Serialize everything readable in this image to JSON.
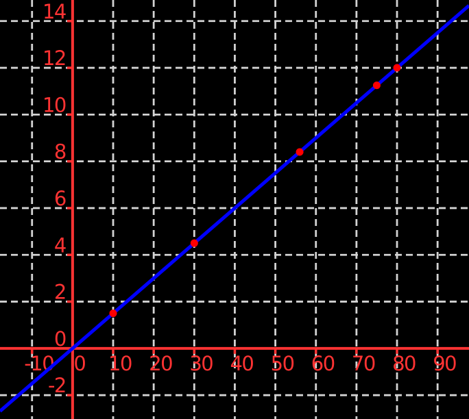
{
  "chart_data": {
    "type": "scatter",
    "title": "",
    "xlabel": "",
    "ylabel": "",
    "legend": false,
    "grid": true,
    "points": [
      [
        10,
        1.5
      ],
      [
        30,
        4.5
      ],
      [
        56,
        8.4
      ],
      [
        75,
        11.25
      ],
      [
        80,
        12
      ]
    ],
    "fit_line": {
      "slope": 0.15,
      "intercept": 0
    },
    "x_ticks": [
      -10,
      0,
      10,
      20,
      30,
      40,
      50,
      60,
      70,
      80,
      90
    ],
    "y_ticks": [
      -2,
      0,
      2,
      4,
      6,
      8,
      10,
      12,
      14
    ],
    "x_tick_labels": [
      "-10",
      "0",
      "10",
      "20",
      "30",
      "40",
      "50",
      "60",
      "70",
      "80",
      "90"
    ],
    "y_tick_labels": [
      "-2",
      "0",
      "2",
      "4",
      "6",
      "8",
      "10",
      "12",
      "14"
    ],
    "xlim": [
      -17.9,
      97.75
    ],
    "ylim": [
      -3.02,
      14.9
    ],
    "colors": {
      "background": "#000000",
      "axis": "#ff3333",
      "tick_labels": "#ff3333",
      "grid": "#d3d3d3",
      "line": "#0000ff",
      "points": "#ff0000"
    }
  }
}
